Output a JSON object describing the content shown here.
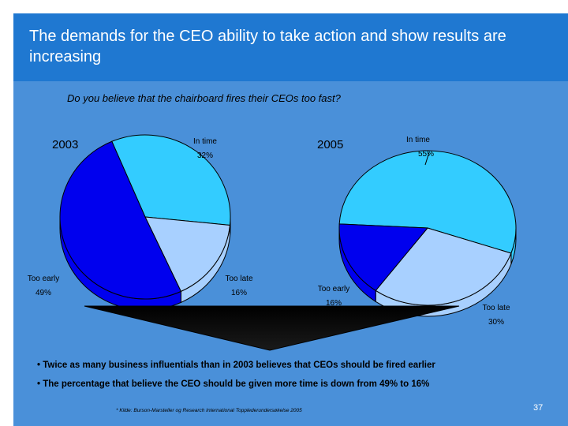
{
  "slide": {
    "title": "The demands for the CEO ability to take action and show results are increasing",
    "question": "Do you believe that the chairboard fires their CEOs too fast?",
    "bullets": [
      "• Twice as many business influentials than in 2003 believes that CEOs should be fired earlier",
      "• The percentage that believe the CEO should be given more time is down from 49% to 16%"
    ],
    "footnote": "* Kilde: Burson-Marsteller og Research International Topplederundersøkelse 2005",
    "page_number": "37"
  },
  "colors": {
    "band": "#1f78d1",
    "background": "#4a90d9",
    "in_time": "#33ccff",
    "too_early": "#0000ee",
    "too_late": "#a8d0ff",
    "outline": "#000000"
  },
  "chart_data": [
    {
      "type": "pie",
      "title": "2003",
      "slices": [
        {
          "label": "In time",
          "value": 32,
          "display": "32%"
        },
        {
          "label": "Too late",
          "value": 16,
          "display": "16%"
        },
        {
          "label": "Too early",
          "value": 49,
          "display": "49%"
        }
      ]
    },
    {
      "type": "pie",
      "title": "2005",
      "slices": [
        {
          "label": "In time",
          "value": 55,
          "display": "55%"
        },
        {
          "label": "Too late",
          "value": 30,
          "display": "30%"
        },
        {
          "label": "Too early",
          "value": 16,
          "display": "16%"
        }
      ]
    }
  ]
}
